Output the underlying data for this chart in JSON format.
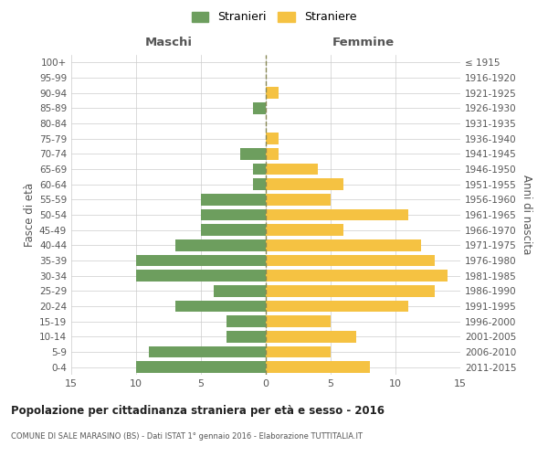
{
  "age_groups": [
    "0-4",
    "5-9",
    "10-14",
    "15-19",
    "20-24",
    "25-29",
    "30-34",
    "35-39",
    "40-44",
    "45-49",
    "50-54",
    "55-59",
    "60-64",
    "65-69",
    "70-74",
    "75-79",
    "80-84",
    "85-89",
    "90-94",
    "95-99",
    "100+"
  ],
  "birth_years": [
    "2011-2015",
    "2006-2010",
    "2001-2005",
    "1996-2000",
    "1991-1995",
    "1986-1990",
    "1981-1985",
    "1976-1980",
    "1971-1975",
    "1966-1970",
    "1961-1965",
    "1956-1960",
    "1951-1955",
    "1946-1950",
    "1941-1945",
    "1936-1940",
    "1931-1935",
    "1926-1930",
    "1921-1925",
    "1916-1920",
    "≤ 1915"
  ],
  "males": [
    10,
    9,
    3,
    3,
    7,
    4,
    10,
    10,
    7,
    5,
    5,
    5,
    1,
    1,
    2,
    0,
    0,
    1,
    0,
    0,
    0
  ],
  "females": [
    8,
    5,
    7,
    5,
    11,
    13,
    14,
    13,
    12,
    6,
    11,
    5,
    6,
    4,
    1,
    1,
    0,
    0,
    1,
    0,
    0
  ],
  "male_color": "#6d9e5e",
  "female_color": "#f5c242",
  "grid_color": "#cccccc",
  "center_line_color": "#888855",
  "title": "Popolazione per cittadinanza straniera per età e sesso - 2016",
  "subtitle": "COMUNE DI SALE MARASINO (BS) - Dati ISTAT 1° gennaio 2016 - Elaborazione TUTTITALIA.IT",
  "xlabel_left": "Maschi",
  "xlabel_right": "Femmine",
  "ylabel_left": "Fasce di età",
  "ylabel_right": "Anni di nascita",
  "legend_male": "Stranieri",
  "legend_female": "Straniere",
  "xlim": 15,
  "bg_color": "#ffffff"
}
